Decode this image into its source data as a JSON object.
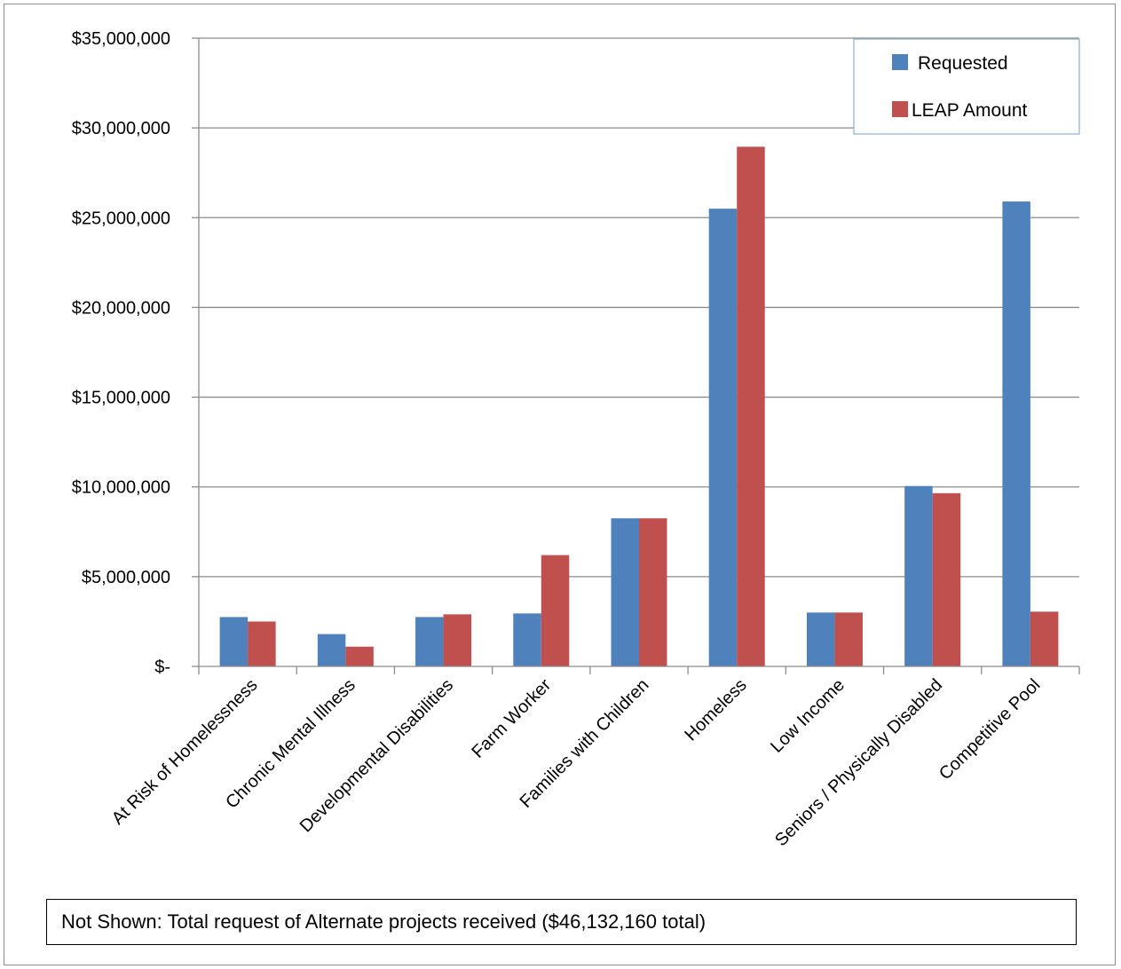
{
  "chart_data": {
    "type": "bar",
    "categories": [
      "At Risk of Homelessness",
      "Chronic Mental Illness",
      "Developmental Disabilities",
      "Farm Worker",
      "Families with Children",
      "Homeless",
      "Low Income",
      "Seniors / Physically Disabled",
      "Competitive Pool"
    ],
    "series": [
      {
        "name": "Requested",
        "color": "#4f81bd",
        "values": [
          2750000,
          1800000,
          2750000,
          2950000,
          8250000,
          25500000,
          3000000,
          10050000,
          25900000
        ]
      },
      {
        "name": "LEAP Amount",
        "color": "#c0504d",
        "values": [
          2500000,
          1100000,
          2900000,
          6200000,
          8250000,
          28950000,
          3000000,
          9650000,
          3050000
        ]
      }
    ],
    "y_ticks": [
      0,
      5000000,
      10000000,
      15000000,
      20000000,
      25000000,
      30000000,
      35000000
    ],
    "y_tick_labels": [
      "$-",
      "$5,000,000",
      "$10,000,000",
      "$15,000,000",
      "$20,000,000",
      "$25,000,000",
      "$30,000,000",
      "$35,000,000"
    ],
    "ylim": [
      0,
      35000000
    ],
    "grid": true,
    "legend_position": "top-right",
    "title": "",
    "xlabel": "",
    "ylabel": ""
  },
  "note": "Not Shown:  Total request of Alternate projects received ($46,132,160 total)"
}
